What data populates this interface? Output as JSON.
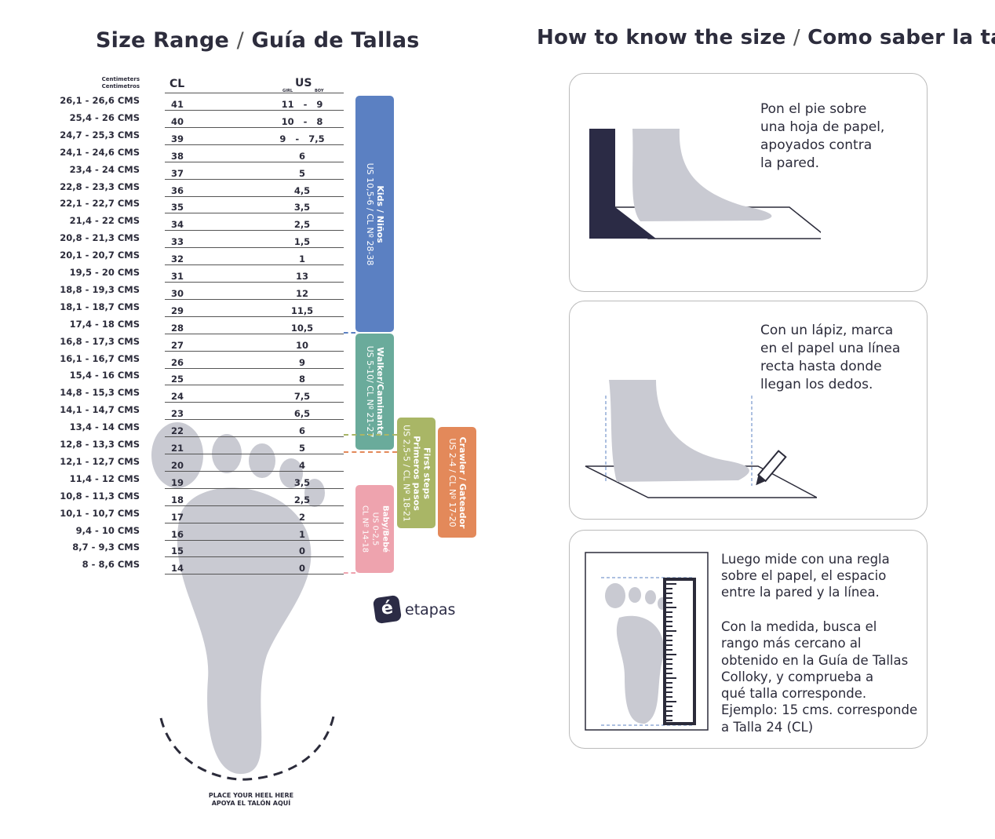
{
  "left": {
    "title_a": "Size Range",
    "title_sep": "/",
    "title_b": "Guía de Tallas",
    "cm_header_en": "Centimeters",
    "cm_header_es": "Centimetros",
    "cl_header": "CL",
    "us_header": "US",
    "girl_label": "GIRL",
    "boy_label": "BOY",
    "rows": [
      {
        "cm": "26,1 - 26,6 CMS",
        "cl": "41",
        "us": "11   -   9"
      },
      {
        "cm": "25,4 - 26 CMS",
        "cl": "40",
        "us": "10   -   8"
      },
      {
        "cm": "24,7 - 25,3 CMS",
        "cl": "39",
        "us": "9   -   7,5"
      },
      {
        "cm": "24,1 - 24,6 CMS",
        "cl": "38",
        "us": "6"
      },
      {
        "cm": "23,4 - 24 CMS",
        "cl": "37",
        "us": "5"
      },
      {
        "cm": "22,8 - 23,3 CMS",
        "cl": "36",
        "us": "4,5"
      },
      {
        "cm": "22,1 - 22,7 CMS",
        "cl": "35",
        "us": "3,5"
      },
      {
        "cm": "21,4 - 22 CMS",
        "cl": "34",
        "us": "2,5"
      },
      {
        "cm": "20,8 - 21,3 CMS",
        "cl": "33",
        "us": "1,5"
      },
      {
        "cm": "20,1 - 20,7 CMS",
        "cl": "32",
        "us": "1"
      },
      {
        "cm": "19,5 - 20 CMS",
        "cl": "31",
        "us": "13"
      },
      {
        "cm": "18,8 - 19,3 CMS",
        "cl": "30",
        "us": "12"
      },
      {
        "cm": "18,1 - 18,7 CMS",
        "cl": "29",
        "us": "11,5"
      },
      {
        "cm": "17,4 - 18 CMS",
        "cl": "28",
        "us": "10,5"
      },
      {
        "cm": "16,8 - 17,3 CMS",
        "cl": "27",
        "us": "10"
      },
      {
        "cm": "16,1 - 16,7 CMS",
        "cl": "26",
        "us": "9"
      },
      {
        "cm": "15,4 - 16 CMS",
        "cl": "25",
        "us": "8"
      },
      {
        "cm": "14,8 - 15,3 CMS",
        "cl": "24",
        "us": "7,5"
      },
      {
        "cm": "14,1 - 14,7 CMS",
        "cl": "23",
        "us": "6,5"
      },
      {
        "cm": "13,4 - 14 CMS",
        "cl": "22",
        "us": "6"
      },
      {
        "cm": "12,8 - 13,3 CMS",
        "cl": "21",
        "us": "5"
      },
      {
        "cm": "12,1 - 12,7 CMS",
        "cl": "20",
        "us": "4"
      },
      {
        "cm": "11,4 - 12 CMS",
        "cl": "19",
        "us": "3,5"
      },
      {
        "cm": "10,8 - 11,3 CMS",
        "cl": "18",
        "us": "2,5"
      },
      {
        "cm": "10,1 - 10,7 CMS",
        "cl": "17",
        "us": "2"
      },
      {
        "cm": "9,4 - 10 CMS",
        "cl": "16",
        "us": "1"
      },
      {
        "cm": "8,7 - 9,3 CMS",
        "cl": "15",
        "us": "0"
      },
      {
        "cm": "8 - 8,6 CMS",
        "cl": "14",
        "us": "0"
      }
    ],
    "categories": {
      "kids": {
        "name": "Kids / Niños",
        "range": "US 10,5-6 / CL Nº 28-38",
        "color": "#5b80c2"
      },
      "walker": {
        "name": "Walker/Caminante",
        "range": "US 5-10/ CL Nº 21-27",
        "color": "#6aab9b"
      },
      "first_steps": {
        "name": "First steps",
        "name_es": "Primeros pasos",
        "range": "US 2,5-5 / CL Nº 18-21",
        "color": "#a9b666"
      },
      "crawler": {
        "name": "Crawler / Gateador",
        "range": "US 2-4 / CL Nº 17-20",
        "color": "#e3895a"
      },
      "baby": {
        "name": "Baby/Bebé",
        "range": "US 0-2,5",
        "range2": "CL Nº 14-18",
        "color": "#eea3ae"
      }
    },
    "heel_en": "PLACE YOUR HEEL HERE",
    "heel_es": "APOYA EL TALÓN AQUÍ",
    "logo": "etapas"
  },
  "right": {
    "title_a": "How to know the size",
    "title_sep": "/",
    "title_b": "Como saber la talla",
    "step1": [
      "Pon el pie sobre",
      "una hoja de papel,",
      "apoyados contra",
      "la pared."
    ],
    "step2": [
      "Con un lápiz, marca",
      "en el papel una línea",
      "recta hasta donde",
      "llegan los dedos."
    ],
    "step3a": [
      "Luego mide con una regla",
      "sobre el papel, el espacio",
      "entre la pared y la línea."
    ],
    "step3b": [
      "Con la medida, busca el",
      "rango más cercano al",
      "obtenido en la Guía de Tallas",
      "Colloky, y comprueba a",
      "qué talla corresponde.",
      "Ejemplo:  15 cms. corresponde",
      "a Talla 24 (CL)"
    ]
  },
  "colors": {
    "footprint": "#c9cad2",
    "ink": "#2b2b3a"
  }
}
